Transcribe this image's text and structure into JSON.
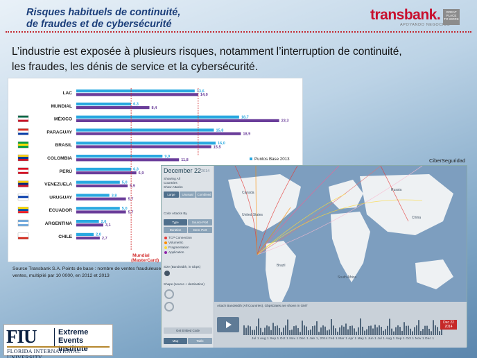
{
  "header": {
    "title_line1": "Risques habituels de continuité,",
    "title_line2": "de fraudes et de cybersécurité",
    "logo_text": "transbank.",
    "logo_sub": "APOYANDO NEGOCIOS",
    "logo_box": "GREAT PLACE TO WORK"
  },
  "intro": {
    "line1": "L’industrie est exposée à plusieurs risques, notamment l’interruption de continuité,",
    "line2": "les fraudes, les dénis de service et la cybersécurité."
  },
  "chart_data": {
    "type": "bar",
    "orientation": "horizontal",
    "categories": [
      "LAC",
      "MUNDIAL",
      "MÉXICO",
      "PARAGUAY",
      "BRASIL",
      "COLOMBIA",
      "PERÚ",
      "VENEZUELA",
      "URUGUAY",
      "ECUADOR",
      "ARGENTINA",
      "CHILE"
    ],
    "series": [
      {
        "name": "Puntos Base 2013",
        "color": "#29a8e0",
        "values": [
          13.6,
          6.3,
          18.7,
          15.8,
          16.0,
          9.9,
          6.3,
          5.0,
          3.8,
          5.0,
          2.6,
          2.0
        ]
      },
      {
        "name": "",
        "color": "#6a3d9a",
        "values": [
          14.0,
          8.4,
          23.3,
          18.9,
          15.5,
          11.8,
          6.9,
          5.9,
          5.7,
          5.7,
          3.1,
          2.7
        ]
      }
    ],
    "value_labels_series1": [
      "13,6",
      "6,3",
      "18,7",
      "15,8",
      "16,0",
      "9,9",
      "6,3",
      "5,0",
      "3,8",
      "5,0",
      "2,6",
      "2,0"
    ],
    "value_labels_series2": [
      "14,0",
      "8,4",
      "23,3",
      "18,9",
      "15,5",
      "11,8",
      "6,9",
      "5,9",
      "5,7",
      "5,7",
      "3,1",
      "2,7"
    ],
    "xlim": [
      0,
      25
    ],
    "reference_line": {
      "value": 6.3,
      "label_line1": "Mundial",
      "label_line2": "(MasterCard)",
      "color": "#d32f2f"
    },
    "reference_line2": {
      "value": 14.0,
      "color": "#d32f2f"
    },
    "legend": "Puntos Base 2013",
    "legend_position": "right"
  },
  "chart_caption": "Source Transbank S.A. Points de base : nombre de ventes frauduleuses / total des ventes, multiplié par 10 0000, en 2012 et 2013",
  "map": {
    "label": "CiberSeguridad",
    "date": "December 22",
    "year": "2014",
    "showing": "Showing All",
    "countries": "Countries",
    "show_attacks": "Show Attacks",
    "tabs": [
      "Large",
      "Unusual",
      "Combined"
    ],
    "color_by": "Color Attacks By",
    "color_buttons": [
      "Type",
      "Source Port",
      "Duration",
      "Dest. Port"
    ],
    "legend_items": [
      {
        "label": "TCP Connection",
        "color": "#e53935"
      },
      {
        "label": "Volumetric",
        "color": "#fb8c00"
      },
      {
        "label": "Fragmentation",
        "color": "#fdd835"
      },
      {
        "label": "Application",
        "color": "#8e24aa"
      }
    ],
    "size_label": "Size (Bandwidth, in Gbps)",
    "shape_label": "Shape (source + destination)",
    "embed": "Get Embed Code",
    "map_btn": "Map",
    "table_btn": "Table",
    "timeline_title": "Attach Bandwidth (All Countries), Gbps",
    "timeline_note": "Dates are shown in GMT",
    "selected_date": "Dec 22 2014",
    "timeline_months": [
      "Jul 1",
      "Aug 1",
      "Sep 1",
      "Oct 1",
      "Nov 1",
      "Dec 1",
      "Jan 1, 2014",
      "Feb 1",
      "Mar 1",
      "Apr 1",
      "May 1",
      "Jun 1",
      "Jul 1",
      "Aug 1",
      "Sep 1",
      "Oct 1",
      "Nov 1",
      "Dec 1"
    ],
    "places": [
      "Canada",
      "United States",
      "Brazil",
      "South Africa",
      "Russia",
      "China"
    ]
  },
  "footer": {
    "fiu_mark": "FIU",
    "fiu_name_line1": "Extreme Events",
    "fiu_name_line2": "Institute",
    "fiu_univ": "FLORIDA INTERNATIONAL UNIVERSITY"
  }
}
